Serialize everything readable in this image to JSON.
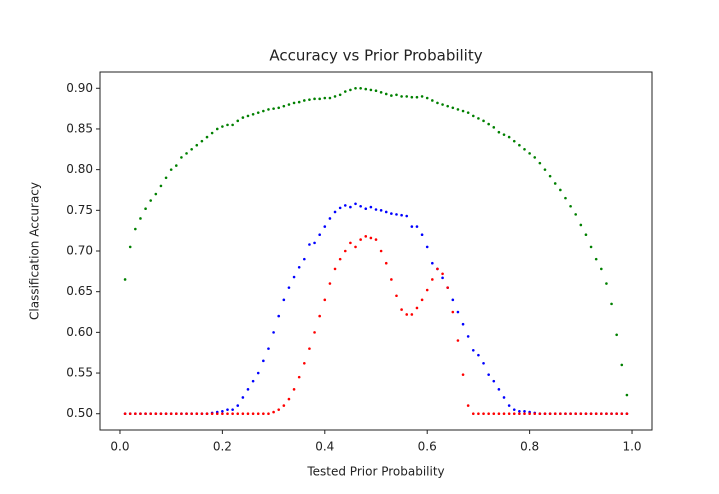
{
  "chart_data": {
    "type": "scatter",
    "title": "Accuracy vs Prior Probability",
    "x_label": "Tested Prior Probability",
    "y_label": "Classification Accuracy",
    "x": [
      0.01,
      0.02,
      0.03,
      0.04,
      0.05,
      0.06,
      0.07,
      0.08,
      0.09,
      0.1,
      0.11,
      0.12,
      0.13,
      0.14,
      0.15,
      0.16,
      0.17,
      0.18,
      0.19,
      0.2,
      0.21,
      0.22,
      0.23,
      0.24,
      0.25,
      0.26,
      0.27,
      0.28,
      0.29,
      0.3,
      0.31,
      0.32,
      0.33,
      0.34,
      0.35,
      0.36,
      0.37,
      0.38,
      0.39,
      0.4,
      0.41,
      0.42,
      0.43,
      0.44,
      0.45,
      0.46,
      0.47,
      0.48,
      0.49,
      0.5,
      0.51,
      0.52,
      0.53,
      0.54,
      0.55,
      0.56,
      0.57,
      0.58,
      0.59,
      0.6,
      0.61,
      0.62,
      0.63,
      0.64,
      0.65,
      0.66,
      0.67,
      0.68,
      0.69,
      0.7,
      0.71,
      0.72,
      0.73,
      0.74,
      0.75,
      0.76,
      0.77,
      0.78,
      0.79,
      0.8,
      0.81,
      0.82,
      0.83,
      0.84,
      0.85,
      0.86,
      0.87,
      0.88,
      0.89,
      0.9,
      0.91,
      0.92,
      0.93,
      0.94,
      0.95,
      0.96,
      0.97,
      0.98,
      0.99
    ],
    "series": [
      {
        "color": "#008000",
        "values": [
          0.665,
          0.705,
          0.727,
          0.74,
          0.752,
          0.762,
          0.77,
          0.78,
          0.79,
          0.8,
          0.805,
          0.815,
          0.82,
          0.825,
          0.83,
          0.835,
          0.84,
          0.845,
          0.85,
          0.853,
          0.855,
          0.855,
          0.86,
          0.864,
          0.866,
          0.868,
          0.87,
          0.872,
          0.874,
          0.875,
          0.876,
          0.878,
          0.88,
          0.882,
          0.883,
          0.885,
          0.886,
          0.887,
          0.887,
          0.888,
          0.888,
          0.89,
          0.892,
          0.896,
          0.898,
          0.9,
          0.9,
          0.899,
          0.898,
          0.897,
          0.895,
          0.893,
          0.891,
          0.892,
          0.89,
          0.89,
          0.889,
          0.889,
          0.89,
          0.888,
          0.885,
          0.882,
          0.88,
          0.878,
          0.876,
          0.874,
          0.872,
          0.87,
          0.866,
          0.863,
          0.86,
          0.856,
          0.852,
          0.846,
          0.843,
          0.84,
          0.835,
          0.83,
          0.825,
          0.82,
          0.815,
          0.808,
          0.8,
          0.792,
          0.783,
          0.775,
          0.765,
          0.755,
          0.745,
          0.732,
          0.72,
          0.705,
          0.69,
          0.678,
          0.66,
          0.635,
          0.597,
          0.56,
          0.523
        ]
      },
      {
        "color": "#0000ff",
        "values": [
          0.5,
          0.5,
          0.5,
          0.5,
          0.5,
          0.5,
          0.5,
          0.5,
          0.5,
          0.5,
          0.5,
          0.5,
          0.5,
          0.5,
          0.5,
          0.5,
          0.5,
          0.501,
          0.502,
          0.503,
          0.505,
          0.505,
          0.51,
          0.52,
          0.53,
          0.54,
          0.55,
          0.565,
          0.58,
          0.6,
          0.62,
          0.64,
          0.655,
          0.668,
          0.68,
          0.69,
          0.708,
          0.71,
          0.72,
          0.73,
          0.74,
          0.748,
          0.753,
          0.756,
          0.754,
          0.758,
          0.755,
          0.752,
          0.754,
          0.751,
          0.75,
          0.748,
          0.746,
          0.745,
          0.744,
          0.743,
          0.73,
          0.73,
          0.72,
          0.705,
          0.685,
          0.678,
          0.667,
          0.655,
          0.64,
          0.625,
          0.61,
          0.595,
          0.578,
          0.572,
          0.562,
          0.548,
          0.54,
          0.53,
          0.52,
          0.51,
          0.505,
          0.503,
          0.503,
          0.502,
          0.501,
          0.5,
          0.5,
          0.5,
          0.5,
          0.5,
          0.5,
          0.5,
          0.5,
          0.5,
          0.5,
          0.5,
          0.5,
          0.5,
          0.5,
          0.5,
          0.5,
          0.5,
          0.5
        ]
      },
      {
        "color": "#ff0000",
        "values": [
          0.5,
          0.5,
          0.5,
          0.5,
          0.5,
          0.5,
          0.5,
          0.5,
          0.5,
          0.5,
          0.5,
          0.5,
          0.5,
          0.5,
          0.5,
          0.5,
          0.5,
          0.5,
          0.5,
          0.5,
          0.5,
          0.5,
          0.5,
          0.5,
          0.5,
          0.5,
          0.5,
          0.5,
          0.5,
          0.502,
          0.505,
          0.51,
          0.518,
          0.53,
          0.545,
          0.562,
          0.58,
          0.6,
          0.62,
          0.64,
          0.66,
          0.678,
          0.69,
          0.7,
          0.71,
          0.705,
          0.714,
          0.718,
          0.716,
          0.714,
          0.7,
          0.685,
          0.665,
          0.645,
          0.628,
          0.622,
          0.622,
          0.63,
          0.64,
          0.652,
          0.665,
          0.678,
          0.672,
          0.655,
          0.625,
          0.59,
          0.548,
          0.51,
          0.5,
          0.5,
          0.5,
          0.5,
          0.5,
          0.5,
          0.5,
          0.5,
          0.5,
          0.5,
          0.5,
          0.5,
          0.5,
          0.5,
          0.5,
          0.5,
          0.5,
          0.5,
          0.5,
          0.5,
          0.5,
          0.5,
          0.5,
          0.5,
          0.5,
          0.5,
          0.5,
          0.5,
          0.5,
          0.5,
          0.5
        ]
      }
    ],
    "xlim": [
      -0.039,
      1.039
    ],
    "ylim": [
      0.48,
      0.92
    ],
    "xticks": [
      {
        "value": 0,
        "label": "0.0"
      },
      0.2,
      0.4,
      0.6,
      0.8,
      {
        "value": 1,
        "label": "1.0"
      }
    ],
    "yticks": [
      {
        "value": 0.5,
        "label": "0.50"
      },
      0.55,
      {
        "value": 0.6,
        "label": "0.60"
      },
      0.65,
      {
        "value": 0.7,
        "label": "0.70"
      },
      0.75,
      {
        "value": 0.8,
        "label": "0.80"
      },
      0.85,
      {
        "value": 0.9,
        "label": "0.90"
      }
    ]
  }
}
